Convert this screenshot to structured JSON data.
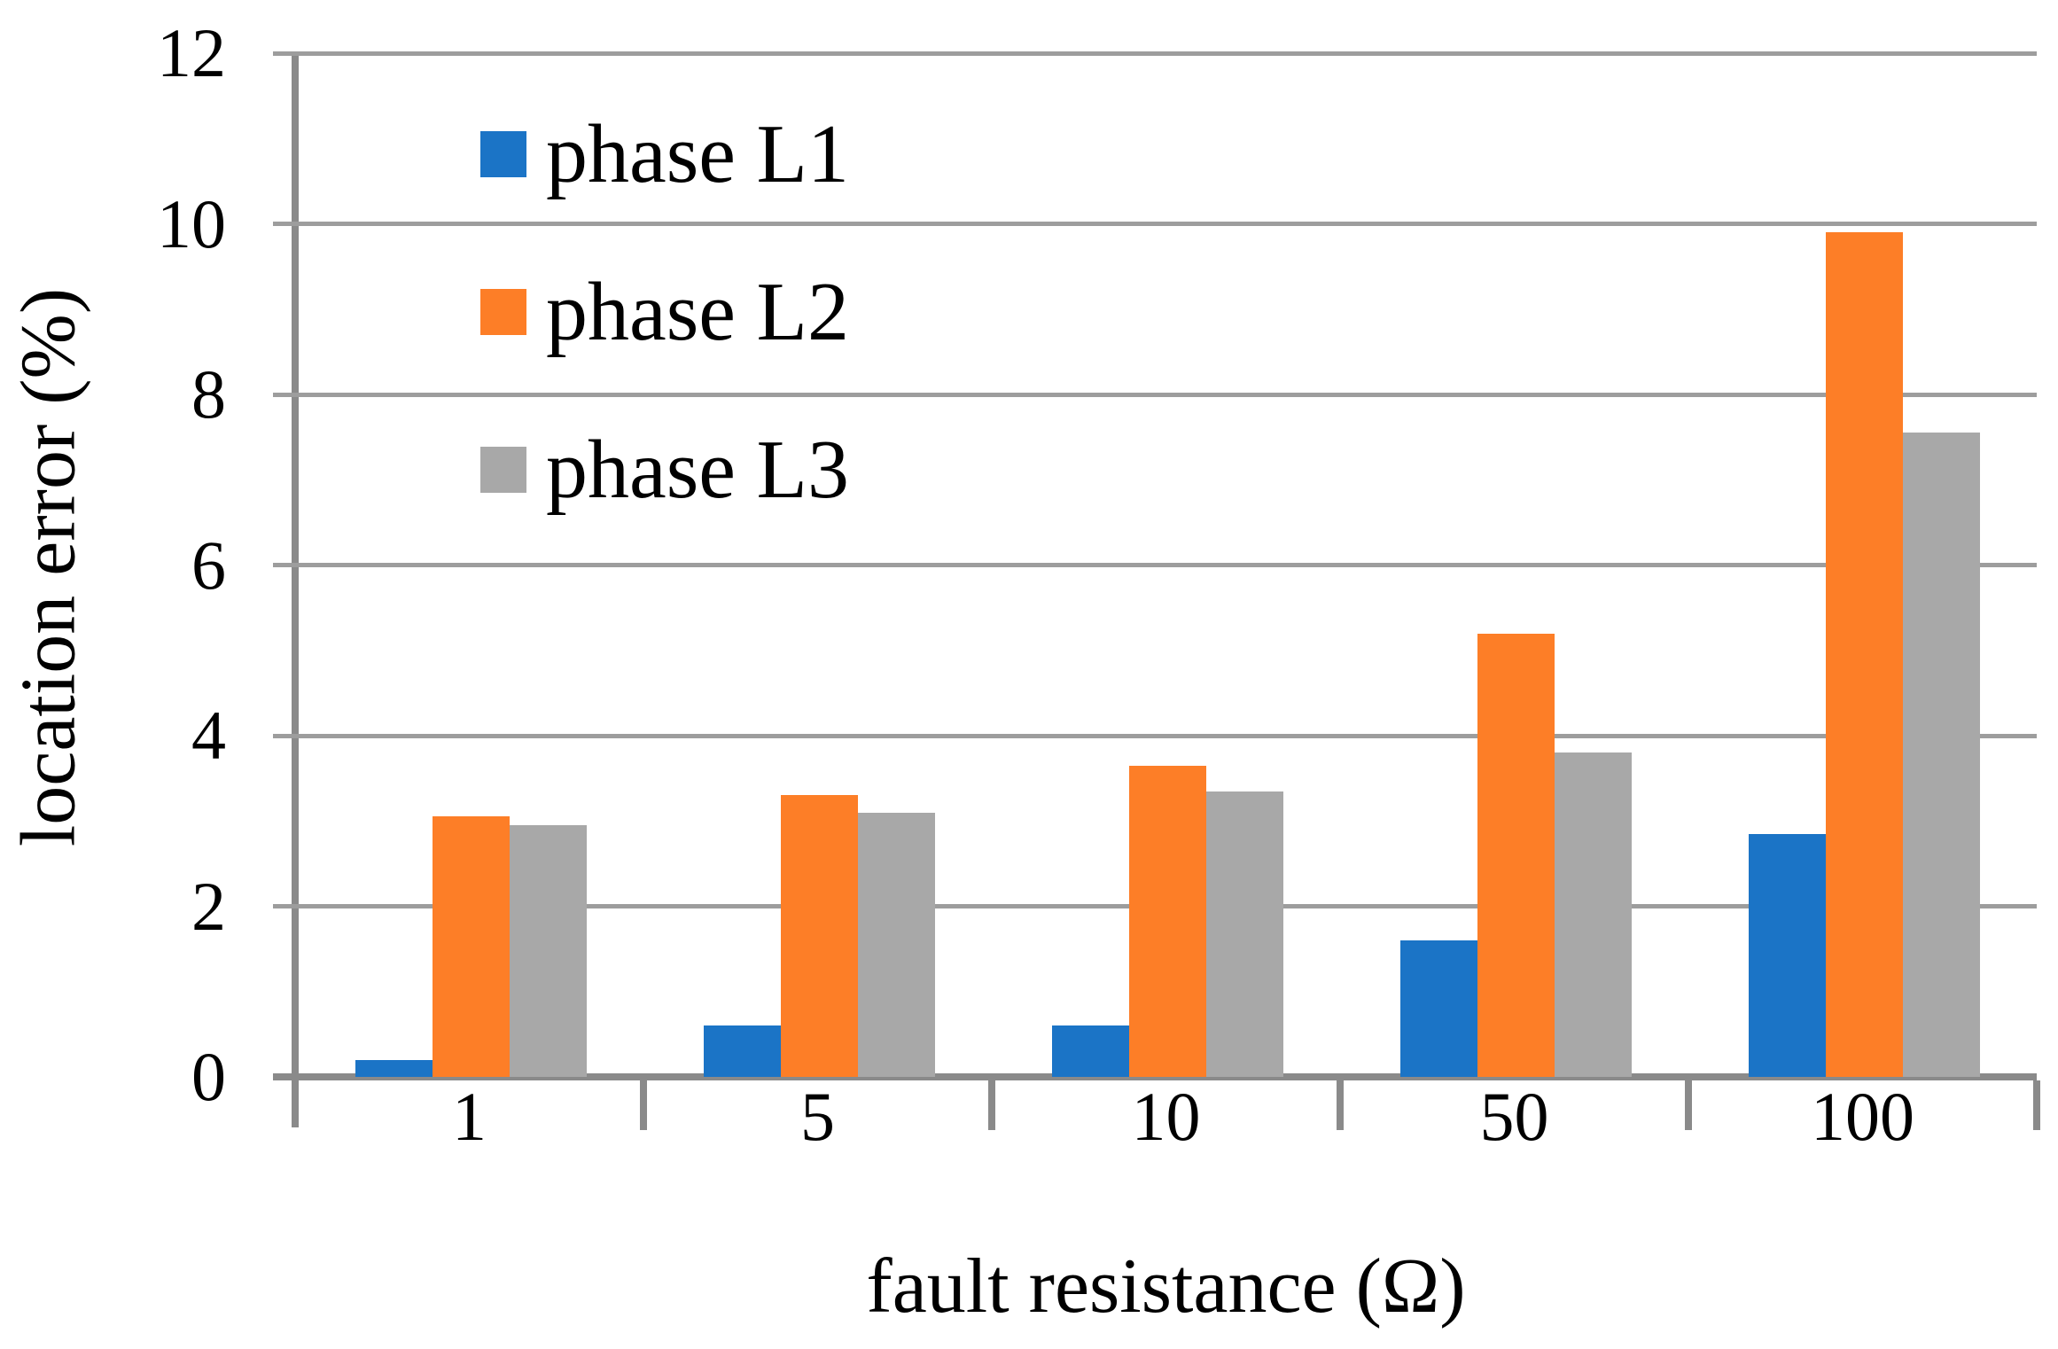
{
  "colors": {
    "gridline": "#9D9D9D",
    "axis": "#8A8A8A",
    "text": "#000000",
    "background": "#FFFFFF"
  },
  "chart_data": {
    "type": "bar",
    "title": "",
    "xlabel": "fault resistance (Ω)",
    "ylabel": "location error (%)",
    "categories": [
      "1",
      "5",
      "10",
      "50",
      "100"
    ],
    "series": [
      {
        "name": "phase L1",
        "color": "#1B74C6",
        "values": [
          0.2,
          0.6,
          0.6,
          1.6,
          2.85
        ]
      },
      {
        "name": "phase L2",
        "color": "#FD7E27",
        "values": [
          3.05,
          3.3,
          3.65,
          5.2,
          9.9
        ]
      },
      {
        "name": "phase L3",
        "color": "#A8A8A8",
        "values": [
          2.95,
          3.1,
          3.35,
          3.8,
          7.55
        ]
      }
    ],
    "ylim": [
      0,
      12
    ],
    "y_ticks": [
      0,
      2,
      4,
      6,
      8,
      10,
      12
    ],
    "grid": "horizontal",
    "legend_position": "inside-top-left"
  }
}
